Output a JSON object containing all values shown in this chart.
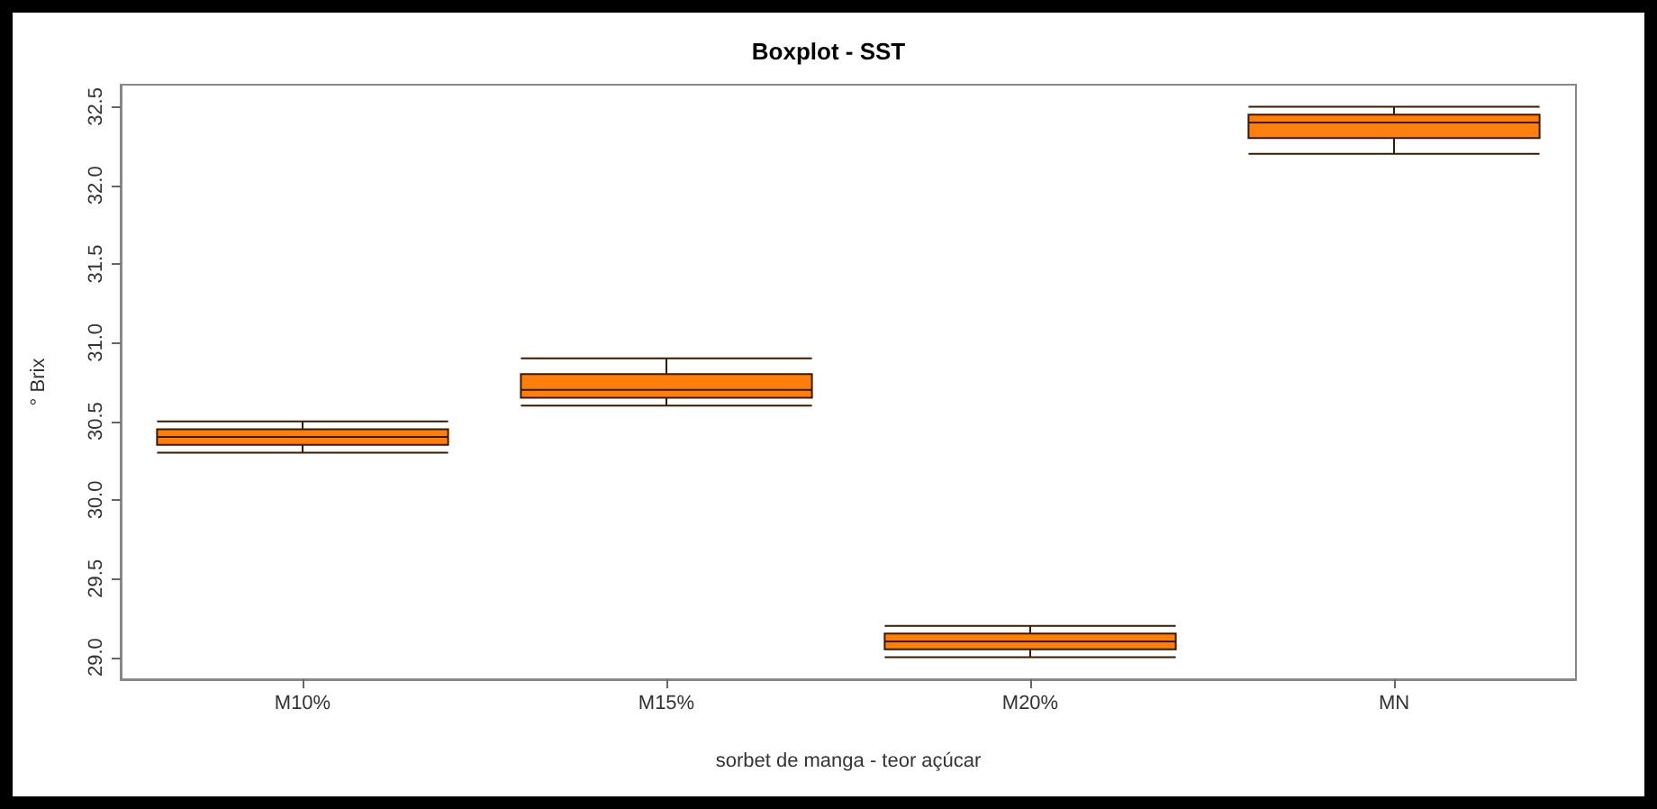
{
  "chart_data": {
    "type": "box",
    "title": "Boxplot - SST",
    "xlabel": "sorbet de manga - teor açúcar",
    "ylabel": "° Brix",
    "categories": [
      "M10%",
      "M15%",
      "M20%",
      "MN"
    ],
    "color": "#ff7f0e",
    "boxes": [
      {
        "low": 30.3,
        "q1": 30.35,
        "median": 30.4,
        "q3": 30.45,
        "high": 30.5
      },
      {
        "low": 30.6,
        "q1": 30.65,
        "median": 30.7,
        "q3": 30.8,
        "high": 30.9
      },
      {
        "low": 29.0,
        "q1": 29.05,
        "median": 29.1,
        "q3": 29.15,
        "high": 29.2
      },
      {
        "low": 32.2,
        "q1": 32.3,
        "median": 32.4,
        "q3": 32.45,
        "high": 32.5
      }
    ],
    "ylim": [
      28.86,
      32.64
    ],
    "yticks": [
      {
        "value": 29,
        "label": "29.0"
      },
      29.5,
      {
        "value": 30,
        "label": "30.0"
      },
      30.5,
      {
        "value": 31,
        "label": "31.0"
      },
      31.5,
      {
        "value": 32,
        "label": "32.0"
      },
      32.5
    ],
    "grid": false
  }
}
